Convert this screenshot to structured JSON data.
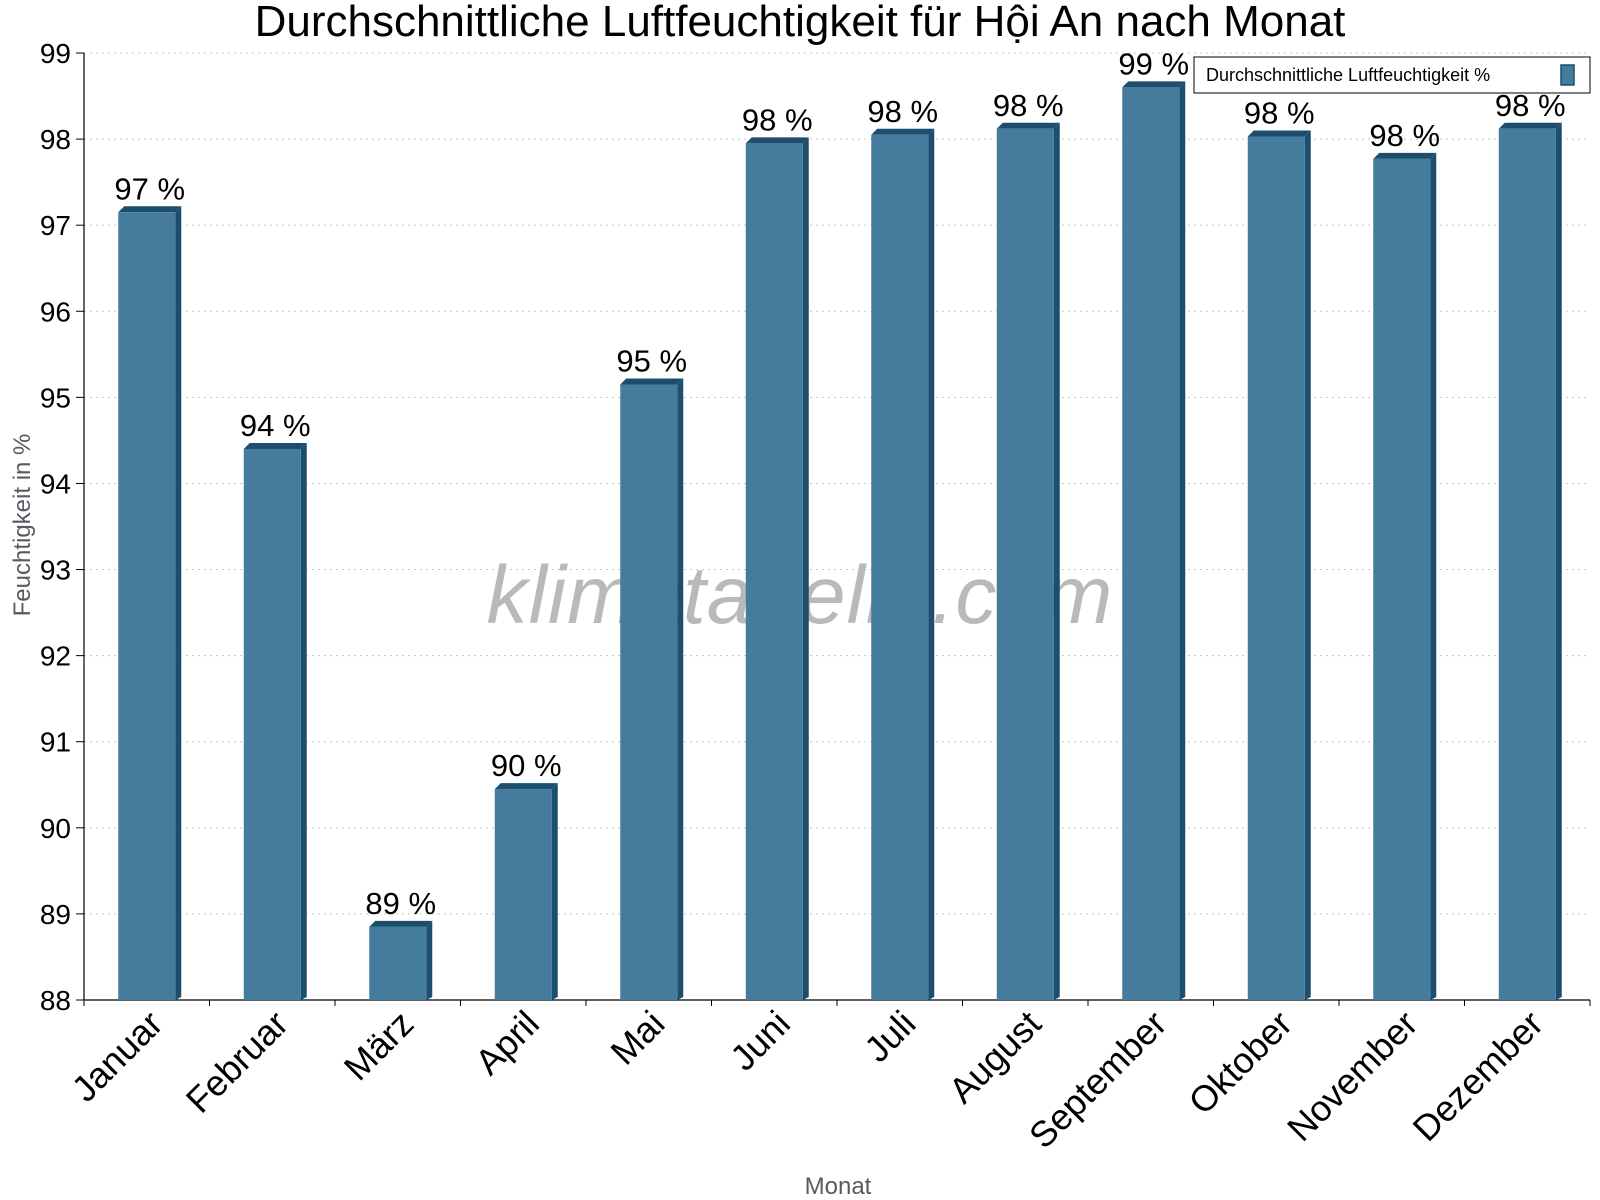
{
  "chart_data": {
    "type": "bar",
    "title": "Durchschnittliche Luftfeuchtigkeit für Hội An nach Monat",
    "xlabel": "Monat",
    "ylabel": "Feuchtigkeit in %",
    "ylim": [
      88,
      99
    ],
    "yticks": [
      "88",
      "89",
      "90",
      "91",
      "92",
      "93",
      "94",
      "95",
      "96",
      "97",
      "98",
      "99"
    ],
    "grid": true,
    "legend_position": "top-right",
    "categories": [
      "Januar",
      "Februar",
      "März",
      "April",
      "Mai",
      "Juni",
      "Juli",
      "August",
      "September",
      "Oktober",
      "November",
      "Dezember"
    ],
    "series": [
      {
        "name": "Durchschnittliche Luftfeuchtigkeit %",
        "values": [
          97.15,
          94.4,
          88.85,
          90.45,
          95.15,
          97.95,
          98.05,
          98.12,
          98.6,
          98.03,
          97.77,
          98.12
        ],
        "labels": [
          "97 %",
          "94 %",
          "89 %",
          "90 %",
          "95 %",
          "98 %",
          "98 %",
          "98 %",
          "99 %",
          "98 %",
          "98 %",
          "98 %"
        ],
        "color": "#457b9d",
        "side_color": "#1d4e6f"
      }
    ],
    "watermark": "klimatabelle.com"
  }
}
